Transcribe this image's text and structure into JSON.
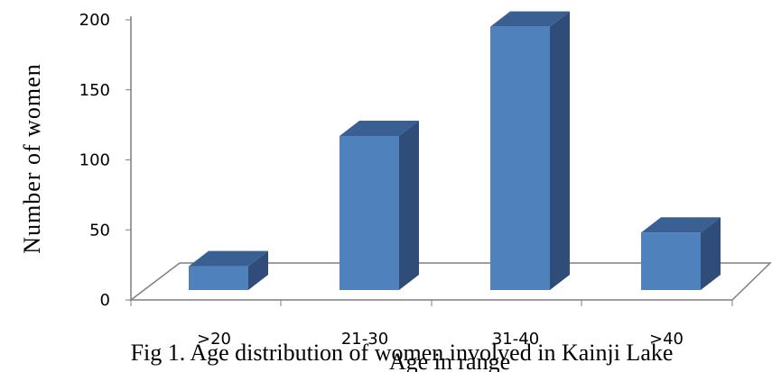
{
  "chart_data": {
    "type": "bar",
    "style": "3d-column",
    "categories": [
      ">20",
      "21-30",
      "31-40",
      ">40"
    ],
    "values": [
      17,
      110,
      188,
      41
    ],
    "xlabel": "Age in range",
    "ylabel": "Number  of  women",
    "ylim": [
      0,
      200
    ],
    "yticks": [
      0,
      50,
      100,
      150,
      200
    ],
    "grid": false,
    "legend": "none",
    "colors": {
      "bar_front": "#4f81bd",
      "bar_side": "#2f4d78",
      "bar_top": "#3a5f93",
      "floor": "#7f7f7f"
    }
  },
  "caption": "Fig 1. Age distribution of women involved in Kainji Lake"
}
